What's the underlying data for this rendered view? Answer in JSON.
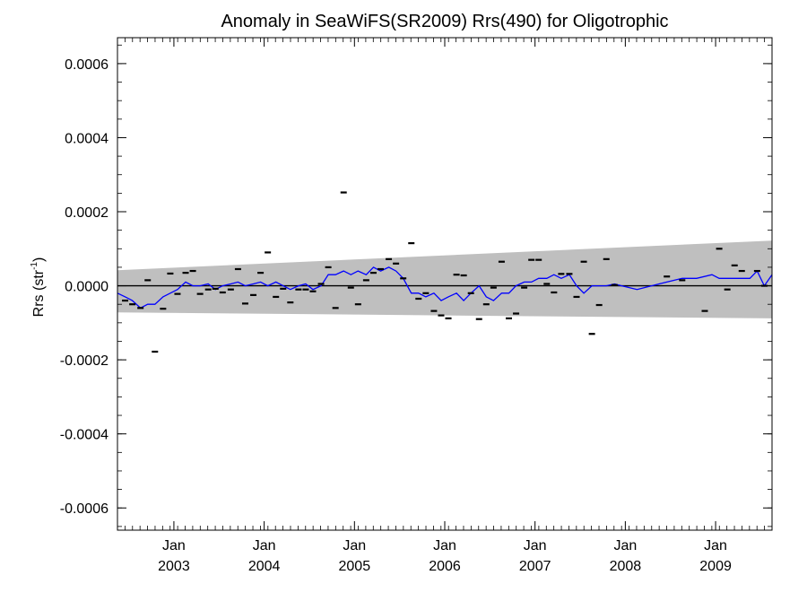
{
  "chart_data": {
    "type": "scatter",
    "title": "Anomaly in SeaWiFS(SR2009) Rrs(490) for Oligotrophic",
    "ylabel": {
      "main": "Rrs (str",
      "sup": "-1",
      "close": ")"
    },
    "xlabel": "",
    "ylim": [
      -0.00066,
      0.00067
    ],
    "xlim": [
      2002.375,
      2009.625
    ],
    "y_ticks": [
      {
        "value": -0.0006,
        "label": "-0.0006"
      },
      {
        "value": -0.0004,
        "label": "-0.0004"
      },
      {
        "value": -0.0002,
        "label": "-0.0002"
      },
      {
        "value": 0.0,
        "label": "0.0000"
      },
      {
        "value": 0.0002,
        "label": "0.0002"
      },
      {
        "value": 0.0004,
        "label": "0.0004"
      },
      {
        "value": 0.0006,
        "label": "0.0006"
      }
    ],
    "x_ticks": [
      {
        "value": 2003.0,
        "month": "Jan",
        "year": "2003"
      },
      {
        "value": 2004.0,
        "month": "Jan",
        "year": "2004"
      },
      {
        "value": 2005.0,
        "month": "Jan",
        "year": "2005"
      },
      {
        "value": 2006.0,
        "month": "Jan",
        "year": "2006"
      },
      {
        "value": 2007.0,
        "month": "Jan",
        "year": "2007"
      },
      {
        "value": 2008.0,
        "month": "Jan",
        "year": "2008"
      },
      {
        "value": 2009.0,
        "month": "Jan",
        "year": "2009"
      }
    ],
    "band": {
      "x": [
        2002.375,
        2009.625
      ],
      "upper": [
        4.2e-05,
        0.000122
      ],
      "lower": [
        -7.2e-05,
        -8.8e-05
      ]
    },
    "monthly_points": {
      "x": [
        2002.46,
        2002.54,
        2002.63,
        2002.71,
        2002.79,
        2002.88,
        2002.96,
        2003.04,
        2003.13,
        2003.21,
        2003.29,
        2003.38,
        2003.46,
        2003.54,
        2003.63,
        2003.71,
        2003.79,
        2003.88,
        2003.96,
        2004.04,
        2004.13,
        2004.21,
        2004.29,
        2004.38,
        2004.46,
        2004.54,
        2004.63,
        2004.71,
        2004.79,
        2004.88,
        2004.96,
        2005.04,
        2005.13,
        2005.21,
        2005.29,
        2005.38,
        2005.46,
        2005.54,
        2005.63,
        2005.71,
        2005.79,
        2005.88,
        2005.96,
        2006.04,
        2006.13,
        2006.21,
        2006.29,
        2006.38,
        2006.46,
        2006.54,
        2006.63,
        2006.71,
        2006.79,
        2006.88,
        2006.96,
        2007.04,
        2007.13,
        2007.21,
        2007.29,
        2007.38,
        2007.46,
        2007.54,
        2007.63,
        2007.71,
        2007.79,
        2007.88,
        2008.46,
        2008.63,
        2008.88,
        2009.04,
        2009.13,
        2009.21,
        2009.29,
        2009.46,
        2009.54
      ],
      "y": [
        -4e-05,
        -5e-05,
        -6e-05,
        1.5e-05,
        -0.000178,
        -6.2e-05,
        3.3e-05,
        -2.2e-05,
        3.5e-05,
        4e-05,
        -2.2e-05,
        -1e-05,
        -8e-06,
        -1.8e-05,
        -1e-05,
        4.5e-05,
        -4.8e-05,
        -2.5e-05,
        3.5e-05,
        9e-05,
        -3e-05,
        -8e-06,
        -4.5e-05,
        -1e-05,
        -1e-05,
        -1.5e-05,
        5e-06,
        5e-05,
        -6e-05,
        0.000252,
        -5e-06,
        -5e-05,
        1.5e-05,
        3.5e-05,
        4.5e-05,
        7.2e-05,
        6e-05,
        2e-05,
        0.000115,
        -3.5e-05,
        -2e-05,
        -6.8e-05,
        -8e-05,
        -8.8e-05,
        3e-05,
        2.8e-05,
        -2e-05,
        -9e-05,
        -5e-05,
        -5e-06,
        6.5e-05,
        -8.8e-05,
        -7.5e-05,
        -5e-06,
        7e-05,
        7e-05,
        5e-06,
        -1.8e-05,
        3.2e-05,
        3.2e-05,
        -3e-05,
        6.5e-05,
        -0.00013,
        -5.2e-05,
        7.2e-05,
        2e-06,
        2.5e-05,
        1.5e-05,
        -6.8e-05,
        0.0001,
        -1e-05,
        5.5e-05,
        4e-05,
        4e-05,
        0.0
      ]
    },
    "smoothed_series": {
      "x": [
        2002.375,
        2002.46,
        2002.54,
        2002.63,
        2002.71,
        2002.79,
        2002.88,
        2002.96,
        2003.04,
        2003.13,
        2003.21,
        2003.29,
        2003.38,
        2003.46,
        2003.54,
        2003.63,
        2003.71,
        2003.79,
        2003.88,
        2003.96,
        2004.04,
        2004.13,
        2004.21,
        2004.29,
        2004.38,
        2004.46,
        2004.54,
        2004.63,
        2004.71,
        2004.79,
        2004.88,
        2004.96,
        2005.04,
        2005.13,
        2005.21,
        2005.29,
        2005.38,
        2005.46,
        2005.54,
        2005.63,
        2005.71,
        2005.79,
        2005.88,
        2005.96,
        2006.04,
        2006.13,
        2006.21,
        2006.29,
        2006.38,
        2006.46,
        2006.54,
        2006.63,
        2006.71,
        2006.79,
        2006.88,
        2006.96,
        2007.04,
        2007.13,
        2007.21,
        2007.29,
        2007.38,
        2007.46,
        2007.54,
        2007.63,
        2007.71,
        2007.79,
        2007.88,
        2007.96,
        2008.13,
        2008.29,
        2008.46,
        2008.63,
        2008.79,
        2008.96,
        2009.04,
        2009.13,
        2009.21,
        2009.29,
        2009.38,
        2009.46,
        2009.54,
        2009.625
      ],
      "y": [
        -2e-05,
        -3e-05,
        -4e-05,
        -6e-05,
        -5e-05,
        -5e-05,
        -3e-05,
        -2e-05,
        -1e-05,
        1e-05,
        0.0,
        0.0,
        5e-06,
        -1e-05,
        0.0,
        5e-06,
        1e-05,
        0.0,
        5e-06,
        1e-05,
        0.0,
        1e-05,
        0.0,
        -1e-05,
        0.0,
        5e-06,
        -1e-05,
        0.0,
        3e-05,
        3e-05,
        4e-05,
        3e-05,
        4e-05,
        3e-05,
        5e-05,
        4e-05,
        5e-05,
        4e-05,
        2e-05,
        -2e-05,
        -2e-05,
        -3e-05,
        -2e-05,
        -4e-05,
        -3e-05,
        -2e-05,
        -4e-05,
        -2e-05,
        0.0,
        -3e-05,
        -4e-05,
        -2e-05,
        -2e-05,
        0.0,
        1e-05,
        1e-05,
        2e-05,
        2e-05,
        3e-05,
        2e-05,
        3e-05,
        0.0,
        -2e-05,
        0.0,
        0.0,
        0.0,
        5e-06,
        0.0,
        -1e-05,
        0.0,
        1e-05,
        2e-05,
        2e-05,
        3e-05,
        2e-05,
        2e-05,
        2e-05,
        2e-05,
        2e-05,
        4e-05,
        0.0,
        3e-05
      ]
    },
    "colors": {
      "band": "#bfbfbf",
      "line": "#0000ff",
      "points": "#000000",
      "zero_line": "#000000",
      "axes": "#000000"
    }
  }
}
